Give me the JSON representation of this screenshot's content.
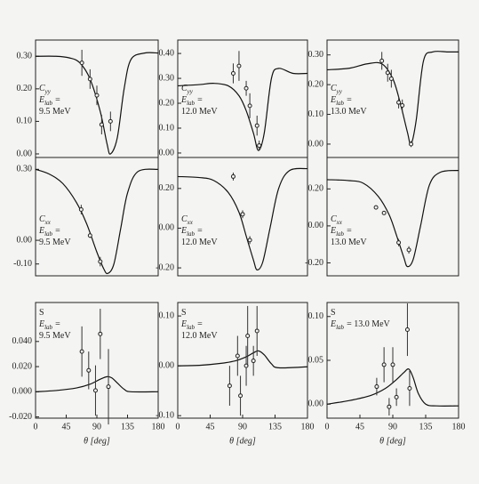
{
  "chart_data": [
    {
      "type": "line",
      "xlim": [
        0,
        180
      ],
      "ylim": [
        -0.011,
        0.35
      ],
      "yticks": [
        {
          "value": 0,
          "label": "0.00"
        },
        {
          "value": 0.1,
          "label": "0.10"
        },
        {
          "value": 0.2,
          "label": "0.20"
        },
        {
          "value": 0.3,
          "label": "0.30"
        }
      ],
      "annotation": [
        {
          "main": "C",
          "sub": "yy"
        },
        {
          "main": "E",
          "sub": "lab",
          "after": "="
        },
        {
          "main": "9.5 MeV"
        }
      ],
      "curve": {
        "x": [
          0,
          30,
          50,
          65,
          80,
          95,
          105,
          110,
          120,
          130,
          140,
          160,
          180
        ],
        "y": [
          0.3,
          0.3,
          0.295,
          0.28,
          0.23,
          0.13,
          0.03,
          0.0,
          0.05,
          0.2,
          0.29,
          0.31,
          0.31
        ]
      },
      "points": {
        "x": [
          68,
          80,
          90,
          97,
          110
        ],
        "y": [
          0.28,
          0.23,
          0.18,
          0.09,
          0.1
        ],
        "err": [
          0.04,
          0.03,
          0.03,
          0.03,
          0.03
        ]
      }
    },
    {
      "type": "line",
      "xlim": [
        0,
        180
      ],
      "ylim": [
        -0.018,
        0.454
      ],
      "yticks": [
        {
          "value": 0,
          "label": "0.00"
        },
        {
          "value": 0.1,
          "label": "0.10"
        },
        {
          "value": 0.2,
          "label": "0.20"
        },
        {
          "value": 0.3,
          "label": "0.30"
        },
        {
          "value": 0.4,
          "label": "0.40"
        }
      ],
      "annotation": [
        {
          "main": "C",
          "sub": "yy"
        },
        {
          "main": "E",
          "sub": "lab",
          "after": "="
        },
        {
          "main": "12.0 MeV"
        }
      ],
      "curve": {
        "x": [
          0,
          30,
          50,
          70,
          85,
          95,
          105,
          112,
          120,
          130,
          140,
          160,
          180
        ],
        "y": [
          0.27,
          0.275,
          0.28,
          0.27,
          0.23,
          0.17,
          0.08,
          0.01,
          0.08,
          0.3,
          0.34,
          0.32,
          0.32
        ]
      },
      "points": {
        "x": [
          77,
          85,
          95,
          100,
          110,
          113
        ],
        "y": [
          0.32,
          0.35,
          0.26,
          0.19,
          0.11,
          0.03
        ],
        "err": [
          0.04,
          0.06,
          0.03,
          0.05,
          0.04,
          0.02
        ]
      }
    },
    {
      "type": "line",
      "xlim": [
        0,
        180
      ],
      "ylim": [
        -0.045,
        0.35
      ],
      "yticks": [
        {
          "value": 0,
          "label": "0.00"
        },
        {
          "value": 0.1,
          "label": "0.10"
        },
        {
          "value": 0.2,
          "label": "0.20"
        },
        {
          "value": 0.3,
          "label": "0.30"
        }
      ],
      "annotation": [
        {
          "main": "C",
          "sub": "yy"
        },
        {
          "main": "E",
          "sub": "lab",
          "after": "="
        },
        {
          "main": "13.0 MeV"
        }
      ],
      "curve": {
        "x": [
          0,
          30,
          55,
          75,
          90,
          100,
          110,
          115,
          122,
          132,
          145,
          165,
          180
        ],
        "y": [
          0.25,
          0.255,
          0.27,
          0.27,
          0.22,
          0.14,
          0.04,
          0.0,
          0.08,
          0.28,
          0.31,
          0.31,
          0.31
        ]
      },
      "points": {
        "x": [
          75,
          83,
          88,
          98,
          103,
          115
        ],
        "y": [
          0.28,
          0.24,
          0.22,
          0.14,
          0.13,
          0.0
        ],
        "err": [
          0.03,
          0.03,
          0.03,
          0.02,
          0.02,
          0.01
        ]
      }
    },
    {
      "type": "line",
      "xlim": [
        0,
        180
      ],
      "ylim": [
        -0.15,
        0.35
      ],
      "yticks": [
        {
          "value": -0.1,
          "label": "-0.10"
        },
        {
          "value": 0,
          "label": "0.00"
        },
        {
          "value": 0.3,
          "label": "0.30"
        }
      ],
      "annotation": [
        {
          "main": "C",
          "sub": "xx"
        },
        {
          "main": "E",
          "sub": "lab",
          "after": "="
        },
        {
          "main": "9.5 MeV"
        }
      ],
      "curve": {
        "x": [
          0,
          20,
          40,
          60,
          75,
          90,
          100,
          106,
          115,
          125,
          135,
          150,
          180
        ],
        "y": [
          0.3,
          0.28,
          0.24,
          0.16,
          0.07,
          -0.05,
          -0.12,
          -0.14,
          -0.1,
          0.05,
          0.2,
          0.29,
          0.3
        ]
      },
      "points": {
        "x": [
          67,
          80,
          95
        ],
        "y": [
          0.13,
          0.02,
          -0.09
        ],
        "err": [
          0.02,
          0.01,
          0.02
        ]
      }
    },
    {
      "type": "line",
      "xlim": [
        0,
        180
      ],
      "ylim": [
        -0.24,
        0.356
      ],
      "yticks": [
        {
          "value": -0.2,
          "label": "-0.20"
        },
        {
          "value": 0,
          "label": "0.00"
        },
        {
          "value": 0.2,
          "label": "0.20"
        }
      ],
      "annotation": [
        {
          "main": "C",
          "sub": "xx"
        },
        {
          "main": "E",
          "sub": "lab",
          "after": "="
        },
        {
          "main": "12.0 MeV"
        }
      ],
      "curve": {
        "x": [
          0,
          30,
          50,
          70,
          85,
          95,
          105,
          110,
          118,
          128,
          140,
          155,
          180
        ],
        "y": [
          0.26,
          0.255,
          0.24,
          0.18,
          0.08,
          -0.04,
          -0.16,
          -0.21,
          -0.17,
          0.0,
          0.2,
          0.29,
          0.3
        ]
      },
      "points": {
        "x": [
          77,
          90,
          100
        ],
        "y": [
          0.26,
          0.07,
          -0.06
        ],
        "err": [
          0.02,
          0.02,
          0.02
        ]
      }
    },
    {
      "type": "line",
      "xlim": [
        0,
        180
      ],
      "ylim": [
        -0.27,
        0.37
      ],
      "yticks": [
        {
          "value": -0.2,
          "label": "-0.20"
        },
        {
          "value": 0,
          "label": "0.00"
        },
        {
          "value": 0.2,
          "label": "0.20"
        }
      ],
      "annotation": [
        {
          "main": "C",
          "sub": "xx"
        },
        {
          "main": "E",
          "sub": "lab",
          "after": "="
        },
        {
          "main": "13.0 MeV"
        }
      ],
      "curve": {
        "x": [
          0,
          30,
          50,
          70,
          85,
          95,
          105,
          110,
          118,
          128,
          140,
          155,
          180
        ],
        "y": [
          0.25,
          0.245,
          0.23,
          0.16,
          0.06,
          -0.05,
          -0.17,
          -0.22,
          -0.18,
          0.0,
          0.22,
          0.29,
          0.3
        ]
      },
      "points": {
        "x": [
          67,
          78,
          98,
          112
        ],
        "y": [
          0.1,
          0.07,
          -0.09,
          -0.13
        ],
        "err": [
          0.01,
          0.01,
          0.02,
          0.02
        ]
      }
    },
    {
      "type": "line",
      "xlim": [
        0,
        180
      ],
      "ylim": [
        -0.021,
        0.071
      ],
      "yticks": [
        {
          "value": -0.02,
          "label": "-0.020"
        },
        {
          "value": 0,
          "label": "0.000"
        },
        {
          "value": 0.02,
          "label": "0.020"
        },
        {
          "value": 0.04,
          "label": "0.040"
        }
      ],
      "xticks": [
        0,
        45,
        90,
        135,
        180
      ],
      "x_label": "θ [deg]",
      "annotation": [
        {
          "main": "S"
        },
        {
          "main": "E",
          "sub": "lab",
          "after": "="
        },
        {
          "main": "9.5 MeV"
        }
      ],
      "curve": {
        "x": [
          0,
          30,
          60,
          80,
          95,
          105,
          112,
          120,
          130,
          140,
          180
        ],
        "y": [
          0.0,
          0.001,
          0.003,
          0.006,
          0.01,
          0.012,
          0.011,
          0.007,
          0.002,
          0.0,
          0.0
        ]
      },
      "points": {
        "x": [
          68,
          78,
          88,
          95,
          107
        ],
        "y": [
          0.032,
          0.017,
          0.001,
          0.046,
          0.004
        ],
        "err": [
          0.02,
          0.015,
          0.02,
          0.02,
          0.03
        ]
      }
    },
    {
      "type": "line",
      "xlim": [
        0,
        180
      ],
      "ylim": [
        -0.105,
        0.127
      ],
      "yticks": [
        {
          "value": -0.1,
          "label": "-0.10"
        },
        {
          "value": 0,
          "label": "0.00"
        },
        {
          "value": 0.1,
          "label": "0.10"
        }
      ],
      "xticks": [
        0,
        45,
        90,
        135,
        180
      ],
      "x_label": "θ [deg]",
      "annotation": [
        {
          "main": "S"
        },
        {
          "main": "E",
          "sub": "lab",
          "after": "="
        },
        {
          "main": "12.0 MeV"
        }
      ],
      "curve": {
        "x": [
          0,
          30,
          60,
          80,
          95,
          105,
          112,
          120,
          130,
          140,
          180
        ],
        "y": [
          0.0,
          0.001,
          0.005,
          0.01,
          0.018,
          0.026,
          0.03,
          0.022,
          0.004,
          -0.004,
          -0.002
        ]
      },
      "points": {
        "x": [
          72,
          83,
          87,
          95,
          97,
          105,
          110
        ],
        "y": [
          -0.04,
          0.02,
          -0.06,
          0.0,
          0.06,
          0.01,
          0.07
        ],
        "err": [
          0.04,
          0.04,
          0.04,
          0.04,
          0.06,
          0.03,
          0.05
        ]
      }
    },
    {
      "type": "line",
      "xlim": [
        0,
        180
      ],
      "ylim": [
        -0.016,
        0.116
      ],
      "yticks": [
        {
          "value": 0,
          "label": "0.00"
        },
        {
          "value": 0.05,
          "label": "0.05"
        },
        {
          "value": 0.1,
          "label": "0.10"
        }
      ],
      "xticks": [
        0,
        45,
        90,
        135,
        180
      ],
      "x_label": "θ [deg]",
      "annotation": [
        {
          "main": "S"
        },
        {
          "main": "E",
          "sub": "lab",
          "after": "= 13.0 MeV"
        }
      ],
      "curve": {
        "x": [
          0,
          30,
          60,
          80,
          95,
          105,
          112,
          118,
          125,
          135,
          150,
          180
        ],
        "y": [
          0.0,
          0.004,
          0.01,
          0.018,
          0.028,
          0.036,
          0.04,
          0.03,
          0.012,
          0.0,
          -0.002,
          -0.002
        ]
      },
      "points": {
        "x": [
          68,
          78,
          85,
          90,
          95,
          110,
          113
        ],
        "y": [
          0.02,
          0.045,
          -0.003,
          0.045,
          0.008,
          0.085,
          0.018
        ],
        "err": [
          0.01,
          0.02,
          0.01,
          0.02,
          0.01,
          0.03,
          0.02
        ]
      }
    }
  ]
}
